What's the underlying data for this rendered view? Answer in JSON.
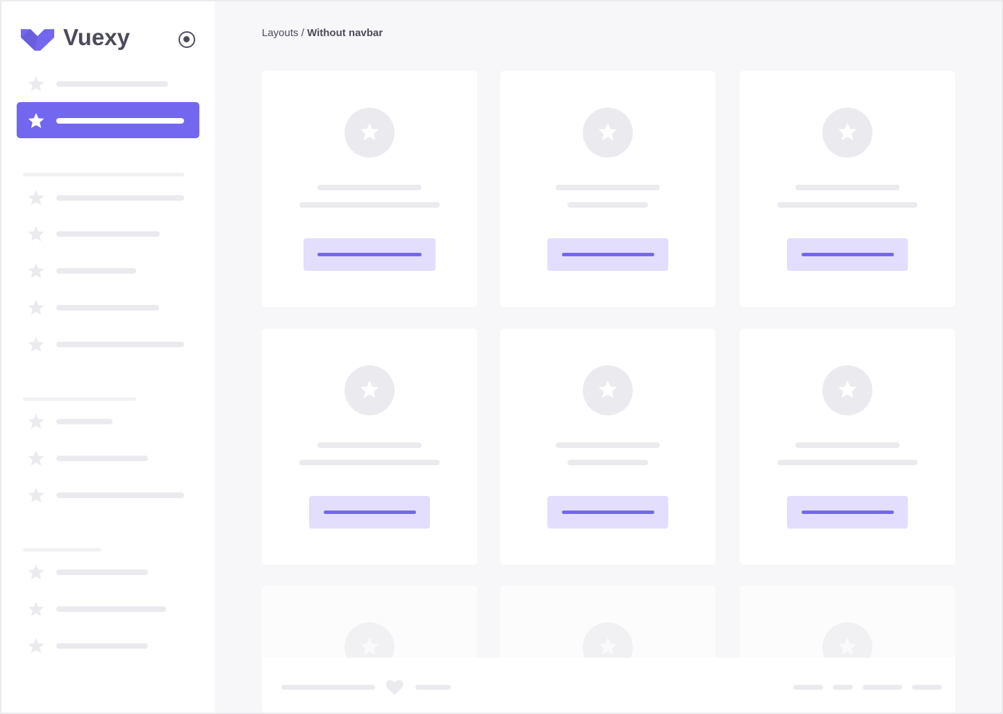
{
  "brand": {
    "name": "Vuexy",
    "logo_color": "#7367f0"
  },
  "breadcrumb": {
    "parent": "Layouts",
    "separator": " / ",
    "current": "Without navbar"
  },
  "colors": {
    "accent": "#7367f0",
    "accent_light": "#e2defb",
    "skeleton": "#ebebef",
    "background": "#f7f7f9"
  },
  "sidebar": {
    "active_index": 1,
    "toggle_icon": "radio-circle-icon"
  },
  "footer": {
    "icon": "heart-icon"
  }
}
